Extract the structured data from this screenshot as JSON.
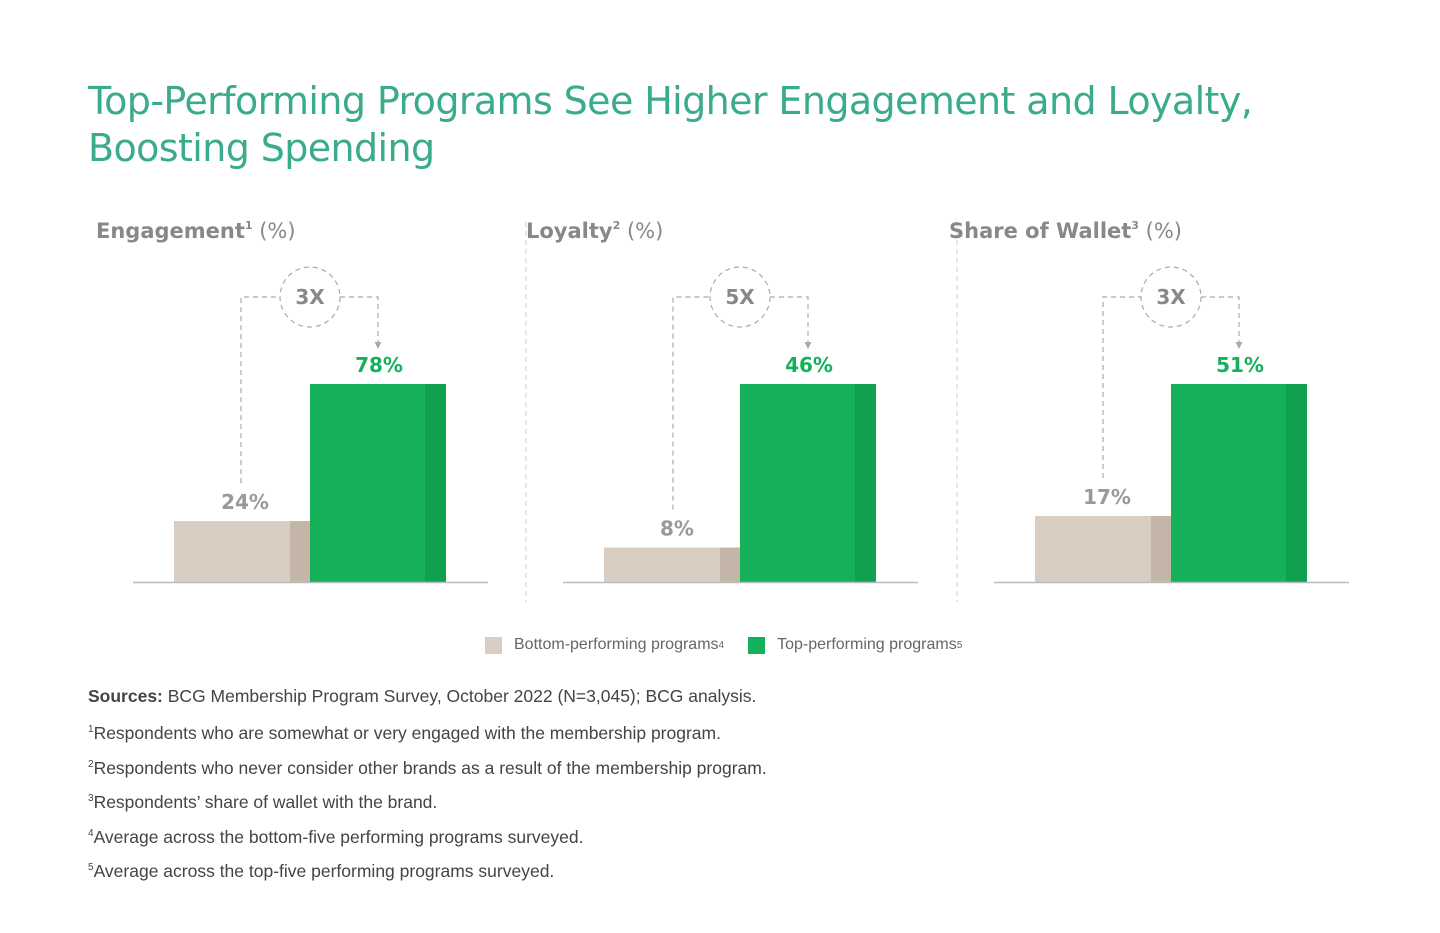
{
  "title": "Top-Performing Programs See Higher Engagement and Loyalty, Boosting Spending",
  "colors": {
    "title": "#3aab8c",
    "bottom": "#d9ccc1",
    "bottom_shade": "#c4b5a9",
    "top": "#14b05a",
    "top_shade": "#10a04f",
    "label_gray": "#999999",
    "label_green": "#14b05a"
  },
  "legend": [
    {
      "label": "Bottom-performing programs",
      "sup": "4",
      "color": "#d9ccc1"
    },
    {
      "label": "Top-performing programs",
      "sup": "5",
      "color": "#14b05a"
    }
  ],
  "chart_data": [
    {
      "type": "bar",
      "title": "Engagement",
      "title_sup": "1",
      "unit": "(%)",
      "categories": [
        "Bottom-performing programs",
        "Top-performing programs"
      ],
      "values": [
        24,
        78
      ],
      "labels": [
        "24%",
        "78%"
      ],
      "multiplier": "3X"
    },
    {
      "type": "bar",
      "title": "Loyalty",
      "title_sup": "2",
      "unit": "(%)",
      "categories": [
        "Bottom-performing programs",
        "Top-performing programs"
      ],
      "values": [
        8,
        46
      ],
      "labels": [
        "8%",
        "46%"
      ],
      "multiplier": "5X"
    },
    {
      "type": "bar",
      "title": "Share of Wallet",
      "title_sup": "3",
      "unit": "(%)",
      "categories": [
        "Bottom-performing programs",
        "Top-performing programs"
      ],
      "values": [
        17,
        51
      ],
      "labels": [
        "17%",
        "51%"
      ],
      "multiplier": "3X"
    }
  ],
  "notes": {
    "sources_label": "Sources:",
    "sources_text": " BCG Membership Program Survey, October 2022 (N=3,045); BCG analysis.",
    "footnotes": [
      {
        "sup": "1",
        "text": "Respondents who are somewhat or very engaged with the membership program."
      },
      {
        "sup": "2",
        "text": "Respondents who never consider other brands as a result of the membership program."
      },
      {
        "sup": "3",
        "text": "Respondents’ share of wallet with the brand."
      },
      {
        "sup": "4",
        "text": "Average across the bottom-five performing programs surveyed."
      },
      {
        "sup": "5",
        "text": "Average across the top-five performing programs surveyed."
      }
    ]
  }
}
